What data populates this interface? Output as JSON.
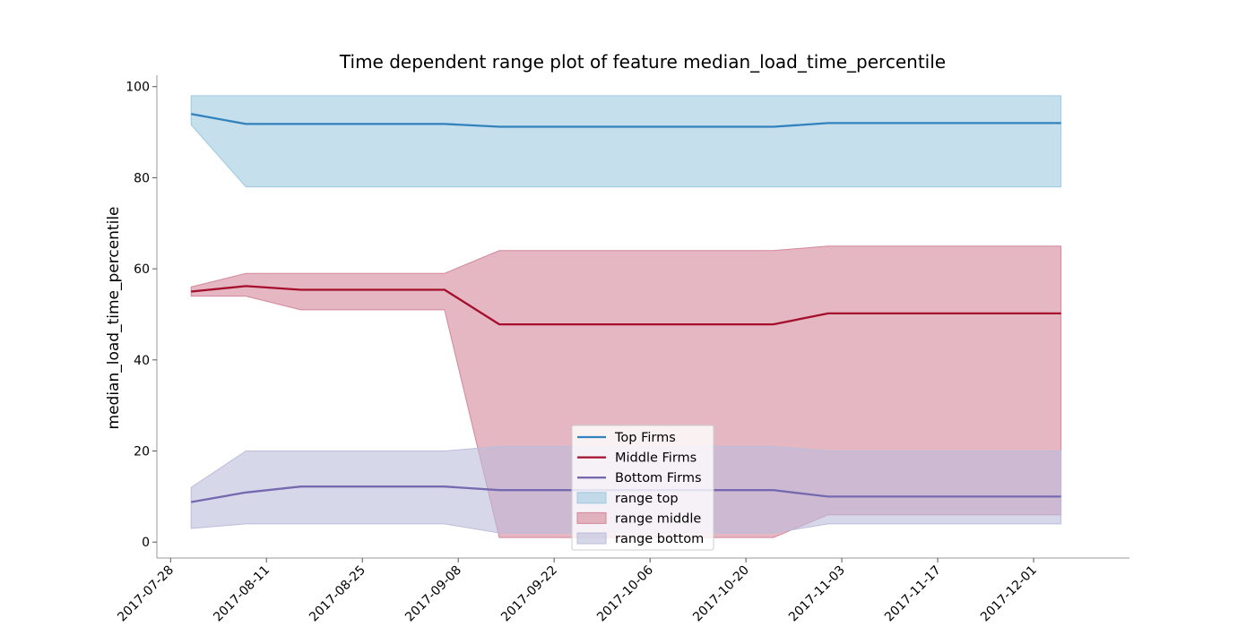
{
  "chart_data": {
    "type": "area",
    "title": "Time dependent range plot of feature median_load_time_percentile",
    "xlabel": "",
    "ylabel": "median_load_time_percentile",
    "x": [
      "2017-07-31",
      "2017-08-08",
      "2017-08-16",
      "2017-09-06",
      "2017-09-14",
      "2017-10-24",
      "2017-11-01",
      "2017-12-05"
    ],
    "x_ticks": [
      "2017-07-28",
      "2017-08-11",
      "2017-08-25",
      "2017-09-08",
      "2017-09-22",
      "2017-10-06",
      "2017-10-20",
      "2017-11-03",
      "2017-11-17",
      "2017-12-01"
    ],
    "xlim": [
      "2017-07-26",
      "2017-12-15"
    ],
    "ylim": [
      -3.5,
      102.5
    ],
    "y_ticks": [
      0,
      20,
      40,
      60,
      80,
      100
    ],
    "grid": false,
    "legend_position": "bottom-center",
    "series": [
      {
        "name": "Top Firms",
        "color": "#3182bd",
        "values": [
          94,
          91.8,
          91.8,
          91.8,
          91.2,
          91.2,
          92,
          92
        ]
      },
      {
        "name": "Middle Firms",
        "color": "#a50f2d",
        "values": [
          55,
          56.2,
          55.4,
          55.4,
          47.8,
          47.8,
          50.2,
          50.2
        ]
      },
      {
        "name": "Bottom Firms",
        "color": "#7569b0",
        "values": [
          8.8,
          10.9,
          12.2,
          12.2,
          11.4,
          11.4,
          10,
          10
        ]
      }
    ],
    "ranges": [
      {
        "name": "range top",
        "color": "#9ecae1",
        "lower": [
          91.6,
          78,
          78,
          78,
          78,
          78,
          78,
          78
        ],
        "upper": [
          98,
          98,
          98,
          98,
          98,
          98,
          98,
          98
        ]
      },
      {
        "name": "range middle",
        "color": "#d4879a",
        "lower": [
          54,
          54,
          51,
          51,
          1,
          1,
          6,
          6
        ],
        "upper": [
          56,
          59,
          59,
          59,
          64,
          64,
          65,
          65
        ]
      },
      {
        "name": "range bottom",
        "color": "#bcbddc",
        "lower": [
          3,
          4,
          4,
          4,
          2,
          2,
          4,
          4
        ],
        "upper": [
          12,
          20,
          20,
          20,
          21,
          21,
          20,
          20
        ]
      }
    ]
  }
}
